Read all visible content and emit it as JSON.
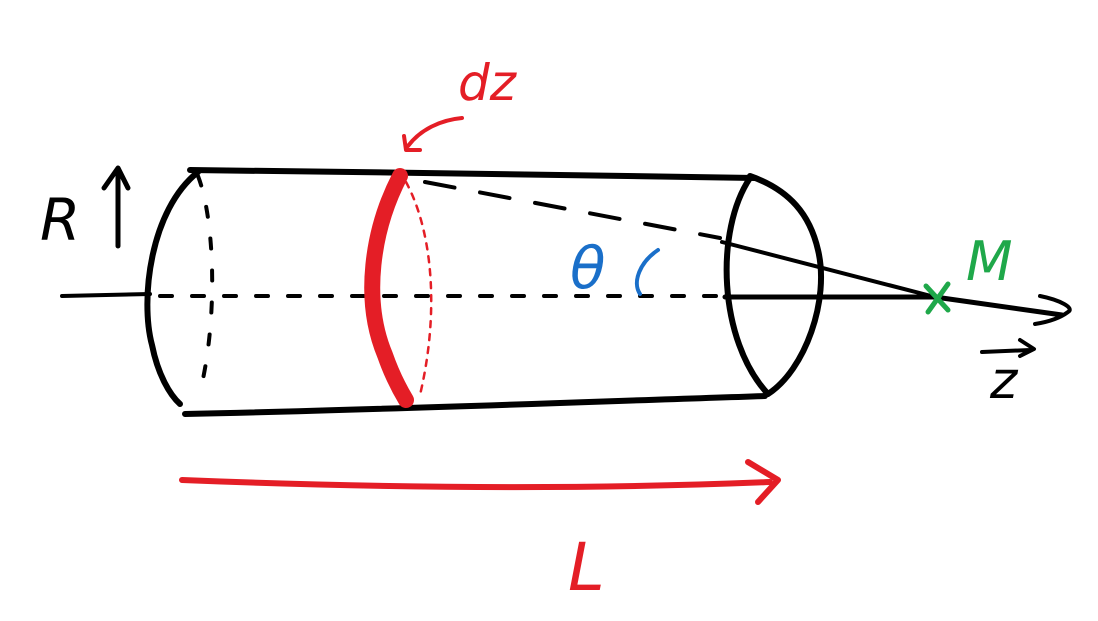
{
  "labels": {
    "radius": "R",
    "element": "dz",
    "angle": "θ",
    "point": "M",
    "axis": "z",
    "length": "L"
  },
  "colors": {
    "ink": "#000000",
    "red": "#e41e26",
    "blue": "#1a6fc9",
    "green": "#1fa84a"
  },
  "icons": {
    "radius_arrow": "arrow-up-icon",
    "length_arrow": "arrow-right-icon",
    "point_marker": "cross-marker-icon",
    "axis_vector": "vector-arrow-icon"
  }
}
